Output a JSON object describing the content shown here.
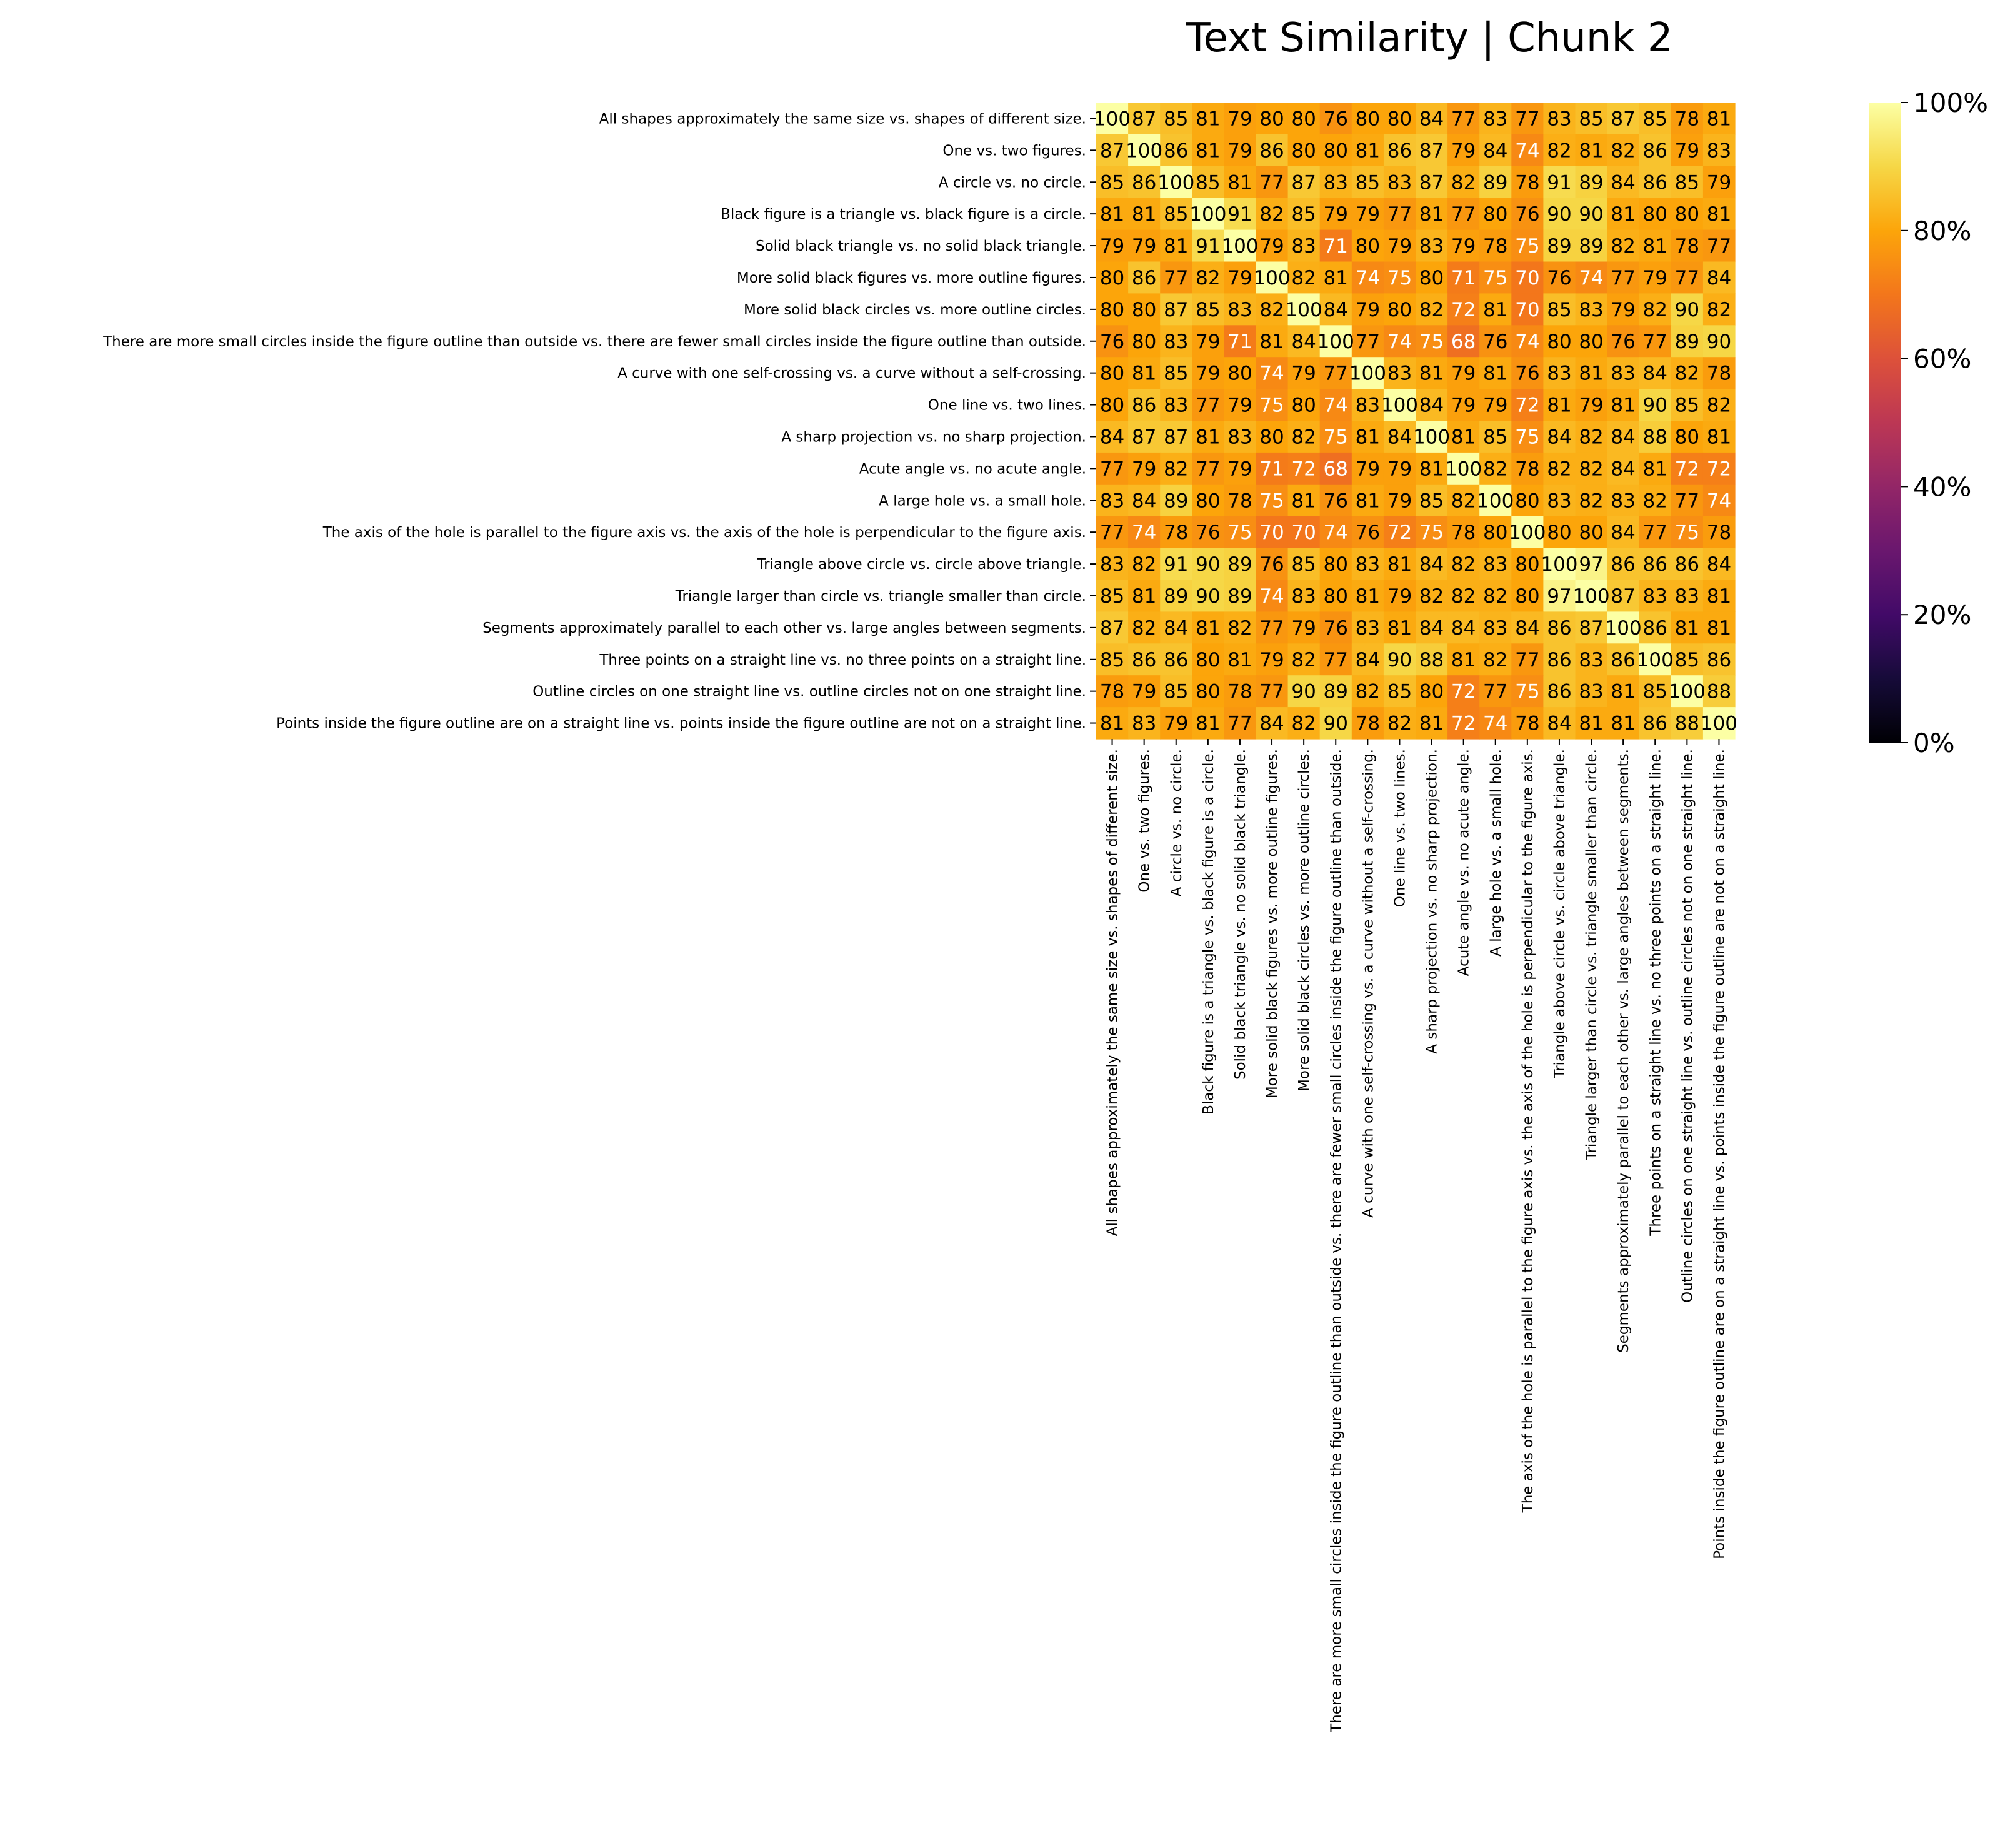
{
  "chart_data": {
    "type": "heatmap",
    "title": "Text Similarity | Chunk 2",
    "colormap": "inferno",
    "value_range": [
      0,
      100
    ],
    "colorbar": {
      "ticks": [
        0,
        20,
        40,
        60,
        80,
        100
      ],
      "tick_labels": [
        "0%",
        "20%",
        "40%",
        "60%",
        "80%",
        "100%"
      ]
    },
    "labels": [
      "All shapes approximately the same size vs. shapes of different size.",
      "One vs. two figures.",
      "A circle vs. no circle.",
      "Black figure is a triangle vs. black figure is a circle.",
      "Solid black triangle vs. no solid black triangle.",
      "More solid black figures vs. more outline figures.",
      "More solid black circles vs. more outline circles.",
      "There are more small circles inside the figure outline than outside vs. there are fewer small circles inside the figure outline than outside.",
      "A curve with one self-crossing vs. a curve without a self-crossing.",
      "One line vs. two lines.",
      "A sharp projection vs. no sharp projection.",
      "Acute angle vs. no acute angle.",
      "A large hole vs. a small hole.",
      "The axis of the hole is parallel to the figure axis vs. the axis of the hole is perpendicular to the figure axis.",
      "Triangle above circle vs. circle above triangle.",
      "Triangle larger than circle vs. triangle smaller than circle.",
      "Segments approximately parallel to each other vs. large angles between segments.",
      "Three points on a straight line vs. no three points on a straight line.",
      "Outline circles on one straight line vs. outline circles not on one straight line.",
      "Points inside the figure outline are on a straight line vs. points inside the figure outline are not on a straight line."
    ],
    "values": [
      [
        100,
        87,
        85,
        81,
        79,
        80,
        80,
        76,
        80,
        80,
        84,
        77,
        83,
        77,
        83,
        85,
        87,
        85,
        78,
        81
      ],
      [
        87,
        100,
        86,
        81,
        79,
        86,
        80,
        80,
        81,
        86,
        87,
        79,
        84,
        74,
        82,
        81,
        82,
        86,
        79,
        83
      ],
      [
        85,
        86,
        100,
        85,
        81,
        77,
        87,
        83,
        85,
        83,
        87,
        82,
        89,
        78,
        91,
        89,
        84,
        86,
        85,
        79
      ],
      [
        81,
        81,
        85,
        100,
        91,
        82,
        85,
        79,
        79,
        77,
        81,
        77,
        80,
        76,
        90,
        90,
        81,
        80,
        80,
        81
      ],
      [
        79,
        79,
        81,
        91,
        100,
        79,
        83,
        71,
        80,
        79,
        83,
        79,
        78,
        75,
        89,
        89,
        82,
        81,
        78,
        77
      ],
      [
        80,
        86,
        77,
        82,
        79,
        100,
        82,
        81,
        74,
        75,
        80,
        71,
        75,
        70,
        76,
        74,
        77,
        79,
        77,
        84
      ],
      [
        80,
        80,
        87,
        85,
        83,
        82,
        100,
        84,
        79,
        80,
        82,
        72,
        81,
        70,
        85,
        83,
        79,
        82,
        90,
        82
      ],
      [
        76,
        80,
        83,
        79,
        71,
        81,
        84,
        100,
        77,
        74,
        75,
        68,
        76,
        74,
        80,
        80,
        76,
        77,
        89,
        90
      ],
      [
        80,
        81,
        85,
        79,
        80,
        74,
        79,
        77,
        100,
        83,
        81,
        79,
        81,
        76,
        83,
        81,
        83,
        84,
        82,
        78
      ],
      [
        80,
        86,
        83,
        77,
        79,
        75,
        80,
        74,
        83,
        100,
        84,
        79,
        79,
        72,
        81,
        79,
        81,
        90,
        85,
        82
      ],
      [
        84,
        87,
        87,
        81,
        83,
        80,
        82,
        75,
        81,
        84,
        100,
        81,
        85,
        75,
        84,
        82,
        84,
        88,
        80,
        81
      ],
      [
        77,
        79,
        82,
        77,
        79,
        71,
        72,
        68,
        79,
        79,
        81,
        100,
        82,
        78,
        82,
        82,
        84,
        81,
        72,
        72
      ],
      [
        83,
        84,
        89,
        80,
        78,
        75,
        81,
        76,
        81,
        79,
        85,
        82,
        100,
        80,
        83,
        82,
        83,
        82,
        77,
        74
      ],
      [
        77,
        74,
        78,
        76,
        75,
        70,
        70,
        74,
        76,
        72,
        75,
        78,
        80,
        100,
        80,
        80,
        84,
        77,
        75,
        78
      ],
      [
        83,
        82,
        91,
        90,
        89,
        76,
        85,
        80,
        83,
        81,
        84,
        82,
        83,
        80,
        100,
        97,
        86,
        86,
        86,
        84
      ],
      [
        85,
        81,
        89,
        90,
        89,
        74,
        83,
        80,
        81,
        79,
        82,
        82,
        82,
        80,
        97,
        100,
        87,
        83,
        83,
        81
      ],
      [
        87,
        82,
        84,
        81,
        82,
        77,
        79,
        76,
        83,
        81,
        84,
        84,
        83,
        84,
        86,
        87,
        100,
        86,
        81,
        81
      ],
      [
        85,
        86,
        86,
        80,
        81,
        79,
        82,
        77,
        84,
        90,
        88,
        81,
        82,
        77,
        86,
        83,
        86,
        100,
        85,
        86
      ],
      [
        78,
        79,
        85,
        80,
        78,
        77,
        90,
        89,
        82,
        85,
        80,
        72,
        77,
        75,
        86,
        83,
        81,
        85,
        100,
        88
      ],
      [
        81,
        83,
        79,
        81,
        77,
        84,
        82,
        90,
        78,
        82,
        81,
        72,
        74,
        78,
        84,
        81,
        81,
        86,
        88,
        100
      ]
    ]
  }
}
